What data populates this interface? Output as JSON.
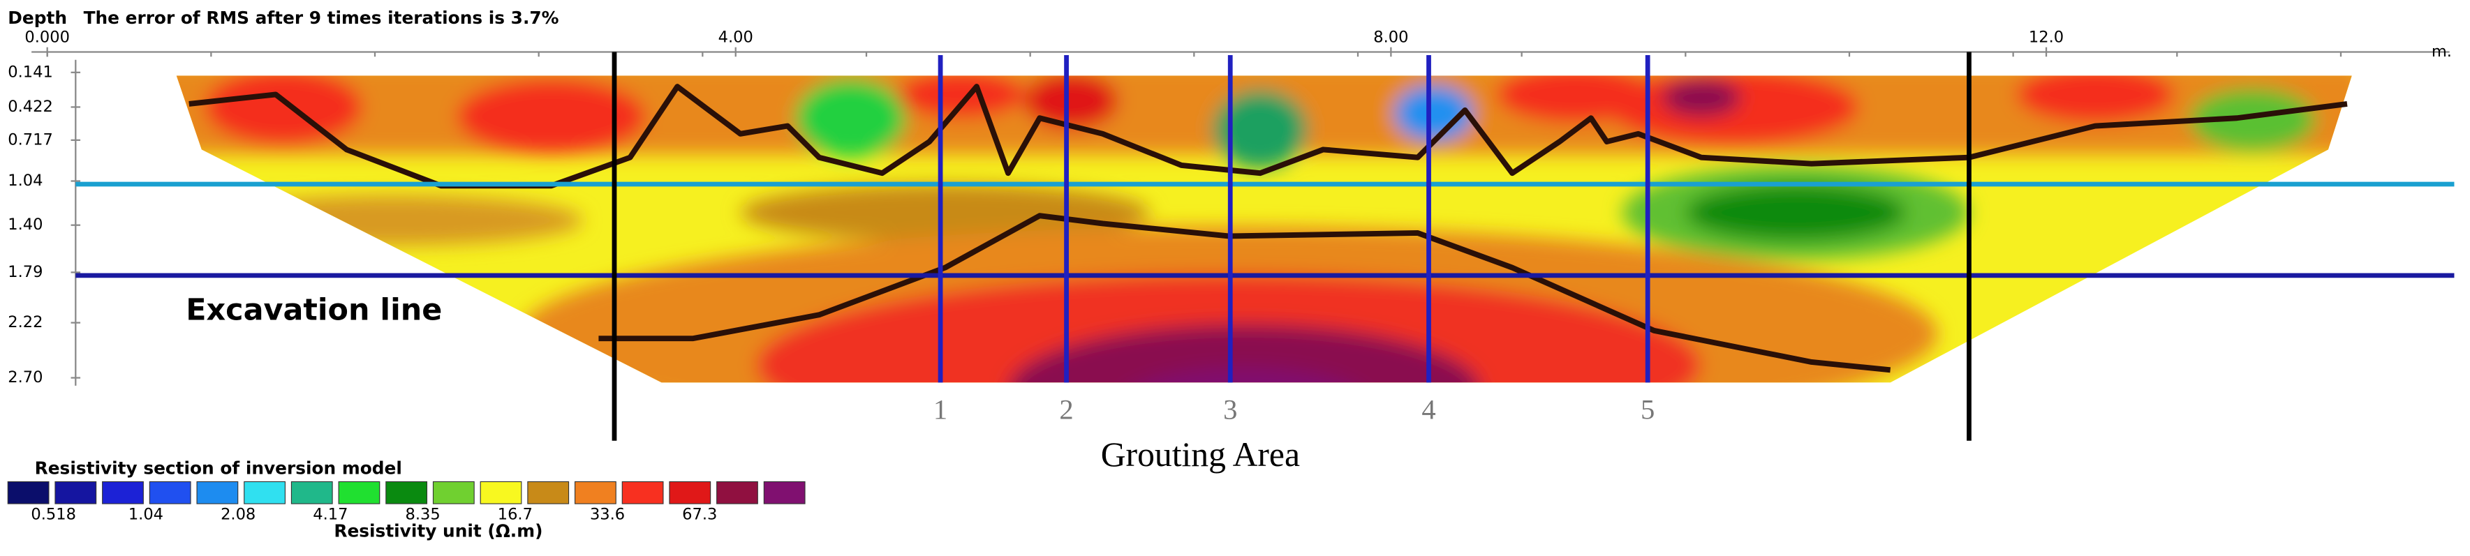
{
  "header": {
    "depth_label": "Depth",
    "title": "The error of RMS after 9 times iterations is 3.7%"
  },
  "x_axis": {
    "ticks": [
      "0.000",
      "4.00",
      "8.00",
      "12.0"
    ],
    "unit": "m."
  },
  "depth_axis": {
    "ticks": [
      "0.141",
      "0.422",
      "0.717",
      "1.04",
      "1.40",
      "1.79",
      "2.22",
      "2.70"
    ]
  },
  "annotations": {
    "excavation": "Excavation line",
    "area": "Grouting Area",
    "holes": [
      "1",
      "2",
      "3",
      "4",
      "5"
    ]
  },
  "legend": {
    "title": "Resistivity section of inversion model",
    "labels": [
      "0.518",
      "1.04",
      "2.08",
      "4.17",
      "8.35",
      "16.7",
      "33.6",
      "67.3"
    ],
    "unit": "Resistivity unit (Ω.m)"
  }
}
